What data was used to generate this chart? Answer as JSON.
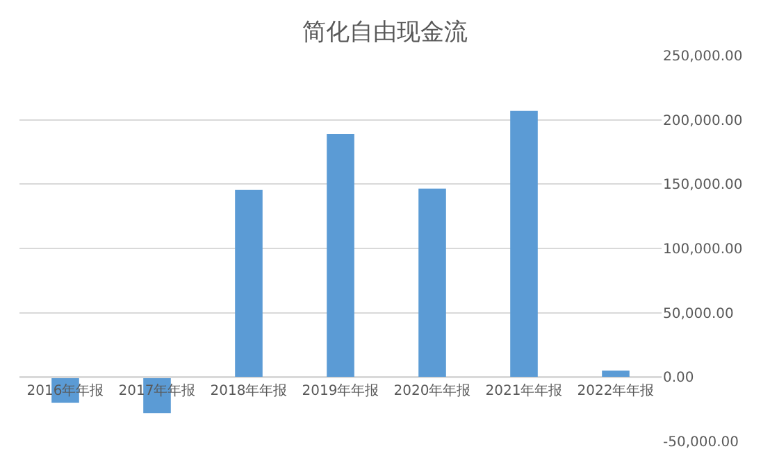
{
  "chart_data": {
    "type": "bar",
    "title": "简化自由现金流",
    "categories": [
      "2016年年报",
      "2017年年报",
      "2018年年报",
      "2019年年报",
      "2020年年报",
      "2021年年报",
      "2022年年报"
    ],
    "values": [
      -20000,
      -28000,
      145500,
      189000,
      146500,
      207000,
      5000
    ],
    "color": "#5b9bd5",
    "ylim": [
      -50000,
      250000
    ],
    "yticks": [
      {
        "value": -50000,
        "label": "-50,000.00"
      },
      {
        "value": 0,
        "label": "0.00"
      },
      {
        "value": 50000,
        "label": "50,000.00"
      },
      {
        "value": 100000,
        "label": "100,000.00"
      },
      {
        "value": 150000,
        "label": "150,000.00"
      },
      {
        "value": 200000,
        "label": "200,000.00"
      },
      {
        "value": 250000,
        "label": "250,000.00"
      }
    ],
    "grid": "y",
    "legend": false
  }
}
